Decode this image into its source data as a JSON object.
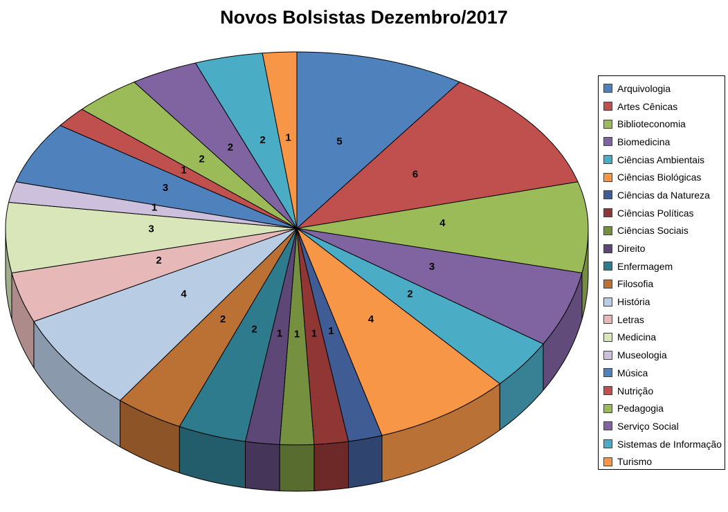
{
  "page": {
    "background": "#FFFFFF"
  },
  "chart_data": {
    "type": "pie",
    "projection": "3d",
    "title": "Novos Bolsistas Dezembro/2017",
    "legend_position": "right",
    "data_labels": "value",
    "total": 53,
    "categories": [
      "Arquivologia",
      "Artes Cênicas",
      "Biblioteconomia",
      "Biomedicina",
      "Ciências Ambientais",
      "Ciências Biológicas",
      "Ciências da Natureza",
      "Ciências Políticas",
      "Ciências Sociais",
      "Direito",
      "Enfermagem",
      "Filosofia",
      "História",
      "Letras",
      "Medicina",
      "Museologia",
      "Música",
      "Nutrição",
      "Pedagogia",
      "Serviço Social",
      "Sistemas de Informação",
      "Turismo"
    ],
    "values": [
      5,
      6,
      4,
      3,
      2,
      4,
      1,
      1,
      1,
      1,
      2,
      2,
      4,
      2,
      3,
      1,
      3,
      1,
      2,
      2,
      2,
      1
    ],
    "colors": [
      "#4F81BD",
      "#C0504D",
      "#9BBB59",
      "#8064A2",
      "#4BACC6",
      "#F79646",
      "#3F5C94",
      "#903634",
      "#75903F",
      "#5C4776",
      "#2E7B8D",
      "#BC7134",
      "#B8CCE4",
      "#E6B9B8",
      "#D8E6BA",
      "#CCC0DD",
      "#4F81BD",
      "#C0504D",
      "#9BBB59",
      "#8064A2",
      "#4BACC6",
      "#F79646"
    ],
    "outline_color": "#000000",
    "start_angle_deg": 0,
    "direction": "clockwise"
  }
}
